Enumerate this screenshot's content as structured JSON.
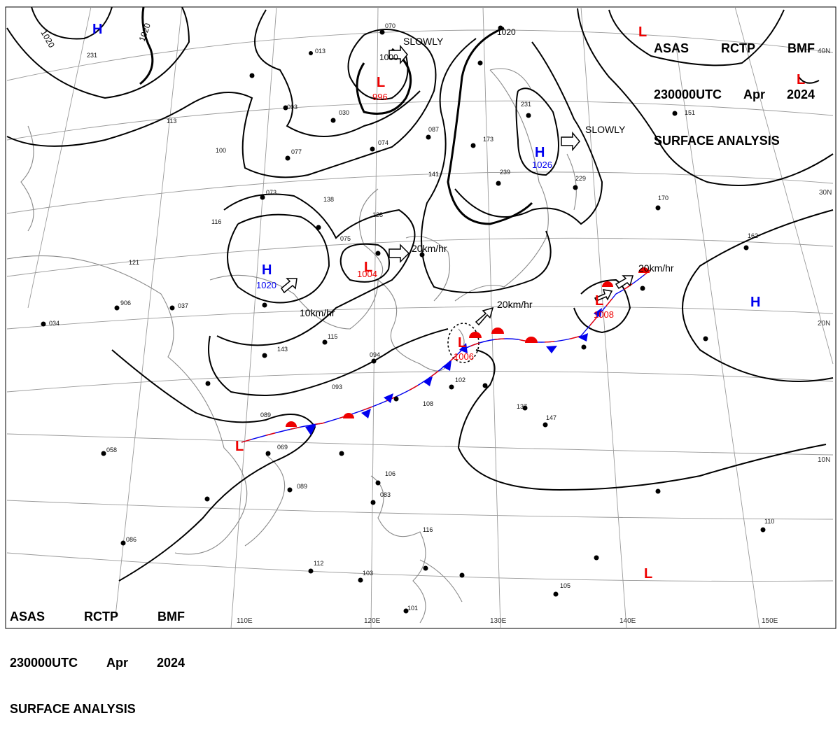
{
  "header": {
    "line1": [
      "ASAS",
      "RCTP",
      "BMF"
    ],
    "line2": [
      "230000UTC",
      "Apr",
      "2024"
    ],
    "line3": "SURFACE ANALYSIS"
  },
  "latitude_labels": [
    "40N",
    "30N",
    "20N",
    "10N"
  ],
  "longitude_labels": [
    "110E",
    "120E",
    "130E",
    "140E",
    "150E"
  ],
  "isobar_labels": [
    "1020",
    "1020",
    "1020",
    "1000"
  ],
  "pressure_centers": [
    {
      "type": "H",
      "value": "1020",
      "id": "china-high"
    },
    {
      "type": "H",
      "value": "1026",
      "id": "japan-sea-high"
    },
    {
      "type": "H",
      "value": "",
      "id": "pacific-high"
    },
    {
      "type": "H",
      "value": "",
      "id": "mongolia-high"
    },
    {
      "type": "L",
      "value": "996",
      "id": "manchuria-low"
    },
    {
      "type": "L",
      "value": "1004",
      "id": "yellow-sea-low"
    },
    {
      "type": "L",
      "value": "1006",
      "id": "taiwan-low"
    },
    {
      "type": "L",
      "value": "1008",
      "id": "east-low"
    },
    {
      "type": "L",
      "value": "",
      "id": "scs-low"
    },
    {
      "type": "L",
      "value": "",
      "id": "ne-low"
    },
    {
      "type": "L",
      "value": "",
      "id": "se-low"
    }
  ],
  "movements": [
    "SLOWLY",
    "SLOWLY",
    "20km/hr",
    "20km/hr",
    "20km/hr",
    "10km/hr"
  ],
  "station_reports": [
    "070",
    "013",
    "093",
    "030",
    "077",
    "073",
    "138",
    "075",
    "128",
    "087",
    "074",
    "141",
    "173",
    "239",
    "231",
    "229",
    "170",
    "162",
    "151",
    "116",
    "121",
    "906",
    "037",
    "115",
    "143",
    "093",
    "094",
    "102",
    "108",
    "137",
    "147",
    "069",
    "089",
    "106",
    "083",
    "116",
    "112",
    "103",
    "101",
    "110",
    "105",
    "058",
    "034",
    "231",
    "113",
    "100",
    "089",
    "086"
  ],
  "colors": {
    "high": "#0000ee",
    "low": "#ee0000",
    "warm_front": "#ee0000",
    "cold_front": "#0000ee",
    "isobar": "#000000",
    "grid": "#9a9a9a",
    "coast": "#8a8a8a"
  }
}
